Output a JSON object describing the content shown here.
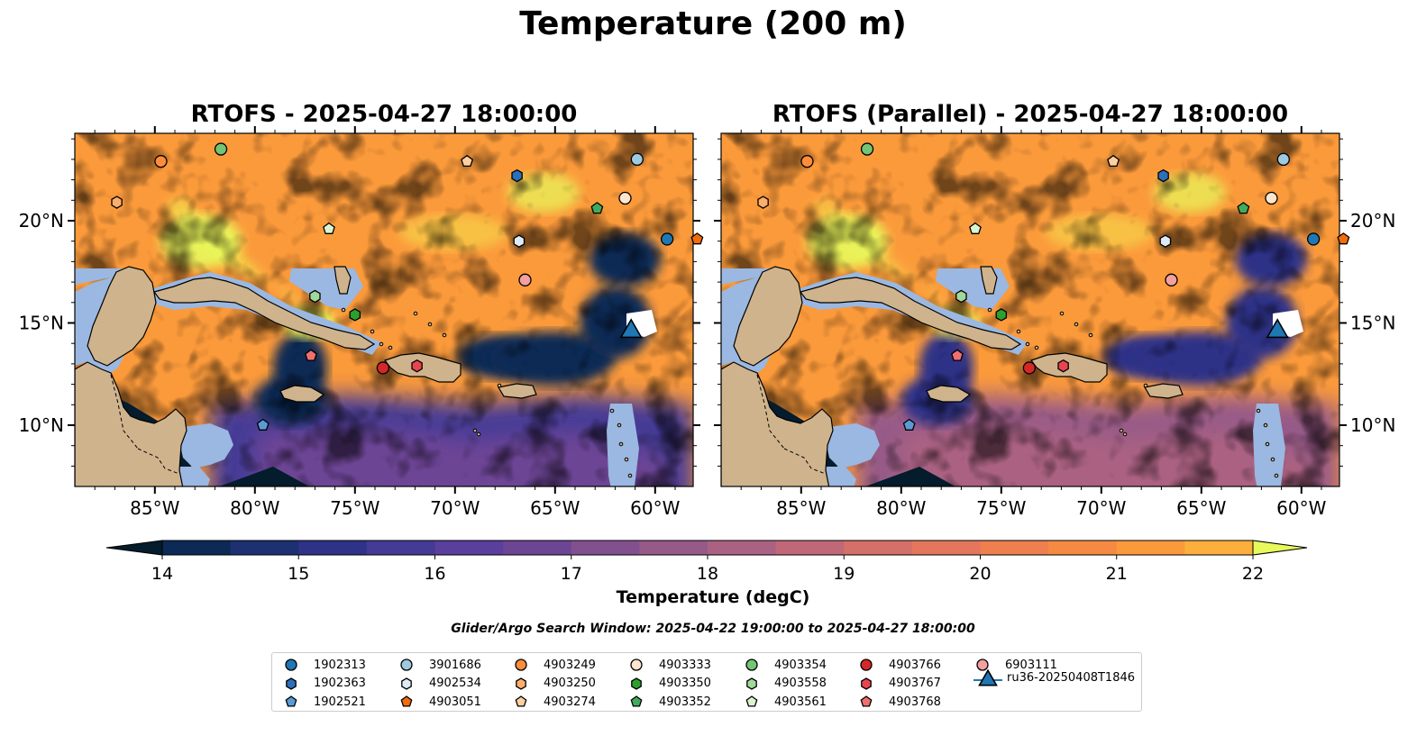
{
  "figure_title": "Temperature (200 m)",
  "panels": [
    {
      "title": "RTOFS - 2025-04-27 18:00:00"
    },
    {
      "title": "RTOFS (Parallel) - 2025-04-27 18:00:00"
    }
  ],
  "lon_ticks": [
    "85°W",
    "80°W",
    "75°W",
    "70°W",
    "65°W",
    "60°W"
  ],
  "lat_ticks": [
    "20°N",
    "15°N",
    "10°N"
  ],
  "colorbar": {
    "label": "Temperature (degC)",
    "ticks": [
      "14",
      "15",
      "16",
      "17",
      "18",
      "19",
      "20",
      "21",
      "22"
    ],
    "colors": [
      "#06213a",
      "#0c2a55",
      "#1c3072",
      "#2e3387",
      "#453a96",
      "#5a3f9c",
      "#6d4595",
      "#82508f",
      "#965a88",
      "#ab6282",
      "#c06878",
      "#d46f6a",
      "#e4765e",
      "#ef7f4e",
      "#f78a42",
      "#fb9a3b",
      "#fcaf3c",
      "#fbc542",
      "#f5db4b"
    ],
    "under_color": "#041c2c",
    "over_color": "#e8fa5b"
  },
  "search_window": "Glider/Argo Search Window: 2025-04-22 19:00:00 to 2025-04-27 18:00:00",
  "colors": {
    "land": "#cfb38d",
    "shelf": "#9ab8e1",
    "deep": "#041c2c",
    "glider": "#1f77b4"
  },
  "legend": {
    "items": [
      {
        "label": "1902313",
        "color": "#1f77b4",
        "marker": "circle"
      },
      {
        "label": "1902363",
        "color": "#2c6fbb",
        "marker": "hexagon"
      },
      {
        "label": "1902521",
        "color": "#5b9bd5",
        "marker": "pentagon"
      },
      {
        "label": "3901686",
        "color": "#9ecae1",
        "marker": "circle"
      },
      {
        "label": "4902534",
        "color": "#deebf7",
        "marker": "hexagon"
      },
      {
        "label": "4903051",
        "color": "#f26c0a",
        "marker": "pentagon"
      },
      {
        "label": "4903249",
        "color": "#fd8d3c",
        "marker": "circle"
      },
      {
        "label": "4903250",
        "color": "#fdae6b",
        "marker": "hexagon"
      },
      {
        "label": "4903274",
        "color": "#fdd0a2",
        "marker": "pentagon"
      },
      {
        "label": "4903333",
        "color": "#fee6ce",
        "marker": "circle"
      },
      {
        "label": "4903350",
        "color": "#2ca02c",
        "marker": "hexagon"
      },
      {
        "label": "4903352",
        "color": "#41ab5d",
        "marker": "pentagon"
      },
      {
        "label": "4903354",
        "color": "#74c476",
        "marker": "circle"
      },
      {
        "label": "4903558",
        "color": "#a1d99b",
        "marker": "hexagon"
      },
      {
        "label": "4903561",
        "color": "#d9f5d0",
        "marker": "pentagon"
      },
      {
        "label": "4903766",
        "color": "#d62728",
        "marker": "circle"
      },
      {
        "label": "4903767",
        "color": "#e8454f",
        "marker": "hexagon"
      },
      {
        "label": "4903768",
        "color": "#f07070",
        "marker": "pentagon"
      },
      {
        "label": "6903111",
        "color": "#f4a0a0",
        "marker": "circle"
      },
      {
        "label": "ru36-20250408T1846",
        "color": "#1f77b4",
        "marker": "triangle"
      }
    ]
  },
  "floats": [
    {
      "id": "4903249",
      "lon": -84.7,
      "lat": 22.9
    },
    {
      "id": "4903354",
      "lon": -81.7,
      "lat": 23.5
    },
    {
      "id": "4903250",
      "lon": -86.9,
      "lat": 20.9
    },
    {
      "id": "1902363",
      "lon": -66.9,
      "lat": 22.2
    },
    {
      "id": "4903274",
      "lon": -69.4,
      "lat": 22.9
    },
    {
      "id": "3901686",
      "lon": -60.9,
      "lat": 23.0
    },
    {
      "id": "4903333",
      "lon": -61.5,
      "lat": 21.1
    },
    {
      "id": "4903352",
      "lon": -62.9,
      "lat": 20.6
    },
    {
      "id": "4903561",
      "lon": -76.3,
      "lat": 19.6
    },
    {
      "id": "4902534",
      "lon": -66.8,
      "lat": 19.0
    },
    {
      "id": "1902313",
      "lon": -59.4,
      "lat": 19.1
    },
    {
      "id": "4903051",
      "lon": -57.9,
      "lat": 19.1
    },
    {
      "id": "6903111",
      "lon": -66.5,
      "lat": 17.1
    },
    {
      "id": "4903558",
      "lon": -77.0,
      "lat": 16.3
    },
    {
      "id": "4903350",
      "lon": -75.0,
      "lat": 15.4
    },
    {
      "id": "4903768",
      "lon": -77.2,
      "lat": 13.4
    },
    {
      "id": "4903766",
      "lon": -73.6,
      "lat": 12.8
    },
    {
      "id": "4903767",
      "lon": -71.9,
      "lat": 12.9
    },
    {
      "id": "1902521",
      "lon": -79.6,
      "lat": 10.0
    }
  ],
  "glider": {
    "id": "ru36-20250408T1846",
    "lon": -61.2,
    "lat": 14.7
  },
  "extent": {
    "lon": [
      -89,
      -58
    ],
    "lat": [
      7,
      24.2
    ]
  }
}
